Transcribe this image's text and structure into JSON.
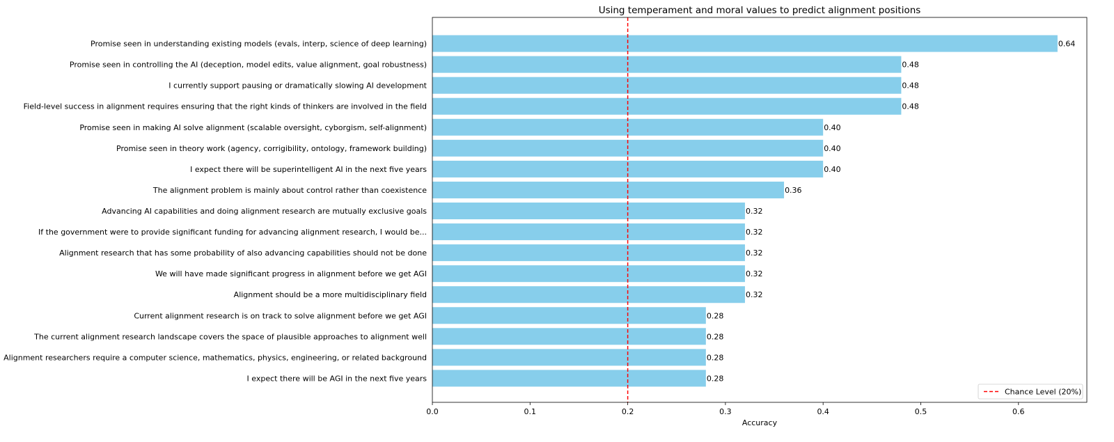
{
  "chart_data": {
    "type": "bar",
    "orientation": "horizontal",
    "title": "Using temperament and moral values to predict alignment positions",
    "xlabel": "Accuracy",
    "ylabel": "",
    "xlim": [
      0,
      0.67
    ],
    "xticks": [
      0.0,
      0.1,
      0.2,
      0.3,
      0.4,
      0.5,
      0.6
    ],
    "xtick_labels": [
      "0.0",
      "0.1",
      "0.2",
      "0.3",
      "0.4",
      "0.5",
      "0.6"
    ],
    "categories": [
      "Promise seen in understanding existing models (evals, interp, science of deep learning)",
      "Promise seen in controlling the AI (deception, model edits, value alignment, goal robustness)",
      "I currently support pausing or dramatically slowing AI development",
      "Field-level success in alignment requires ensuring that the right kinds of thinkers are involved in the field",
      "Promise seen in making AI solve alignment (scalable oversight, cyborgism, self-alignment)",
      "Promise seen in theory work (agency, corrigibility, ontology, framework building)",
      "I expect there will be superintelligent AI in the next five years",
      "The alignment problem is mainly about control rather than coexistence",
      "Advancing AI capabilities and doing alignment research are mutually exclusive goals",
      "If the government were to provide significant funding for advancing alignment research, I would be...",
      "Alignment research that has some probability of also advancing capabilities should not be done",
      "We will have made significant progress in alignment before we get AGI",
      "Alignment should be a more multidisciplinary field",
      "Current alignment research is on track to solve alignment before we get AGI",
      "The current alignment research landscape covers the space of plausible approaches to alignment well",
      "Alignment researchers require a computer science, mathematics, physics, engineering, or related background",
      "I expect there will be AGI in the next five years"
    ],
    "values": [
      0.64,
      0.48,
      0.48,
      0.48,
      0.4,
      0.4,
      0.4,
      0.36,
      0.32,
      0.32,
      0.32,
      0.32,
      0.32,
      0.28,
      0.28,
      0.28,
      0.28
    ],
    "value_labels": [
      "0.64",
      "0.48",
      "0.48",
      "0.48",
      "0.40",
      "0.40",
      "0.40",
      "0.36",
      "0.32",
      "0.32",
      "0.32",
      "0.32",
      "0.32",
      "0.28",
      "0.28",
      "0.28",
      "0.28"
    ],
    "bar_color": "#87ceeb",
    "reference_line": {
      "value": 0.2,
      "label": "Chance Level (20%)",
      "color": "#ff0000",
      "style": "dashed"
    },
    "legend": {
      "position": "bottom-right",
      "entries": [
        "Chance Level (20%)"
      ]
    },
    "grid": false
  }
}
